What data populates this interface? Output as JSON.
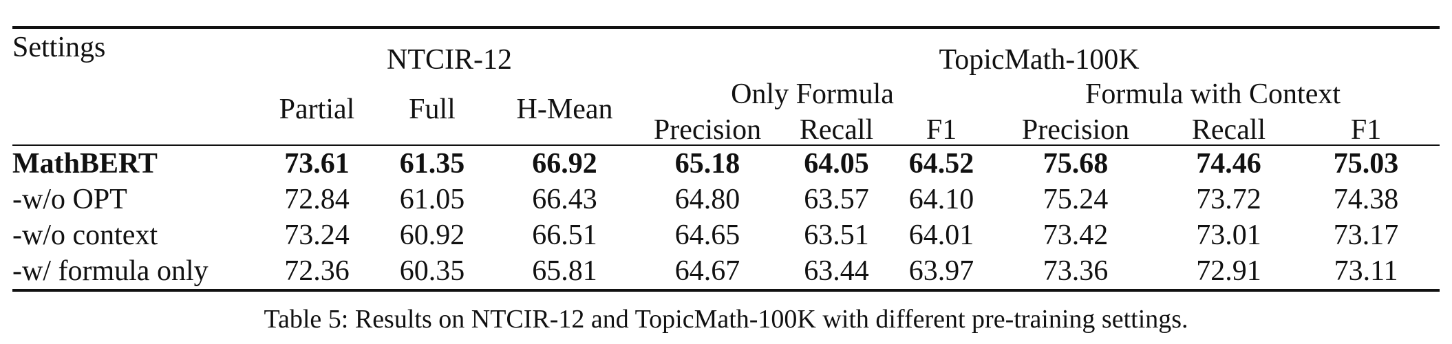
{
  "table": {
    "header": {
      "settings": "Settings",
      "ntcir": "NTCIR-12",
      "topicmath": "TopicMath-100K",
      "only_formula": "Only Formula",
      "formula_context": "Formula with Context",
      "partial": "Partial",
      "full": "Full",
      "hmean": "H-Mean",
      "precision": "Precision",
      "recall": "Recall",
      "f1": "F1"
    },
    "rows": [
      {
        "setting": "MathBERT",
        "bold": true,
        "values": [
          "73.61",
          "61.35",
          "66.92",
          "65.18",
          "64.05",
          "64.52",
          "75.68",
          "74.46",
          "75.03"
        ]
      },
      {
        "setting": "-w/o OPT",
        "bold": false,
        "values": [
          "72.84",
          "61.05",
          "66.43",
          "64.80",
          "63.57",
          "64.10",
          "75.24",
          "73.72",
          "74.38"
        ]
      },
      {
        "setting": "-w/o context",
        "bold": false,
        "values": [
          "73.24",
          "60.92",
          "66.51",
          "64.65",
          "63.51",
          "64.01",
          "73.42",
          "73.01",
          "73.17"
        ]
      },
      {
        "setting": "-w/ formula only",
        "bold": false,
        "values": [
          "72.36",
          "60.35",
          "65.81",
          "64.67",
          "63.44",
          "63.97",
          "73.36",
          "72.91",
          "73.11"
        ]
      }
    ]
  },
  "caption": "Table 5: Results on NTCIR-12 and TopicMath-100K with different pre-training settings."
}
